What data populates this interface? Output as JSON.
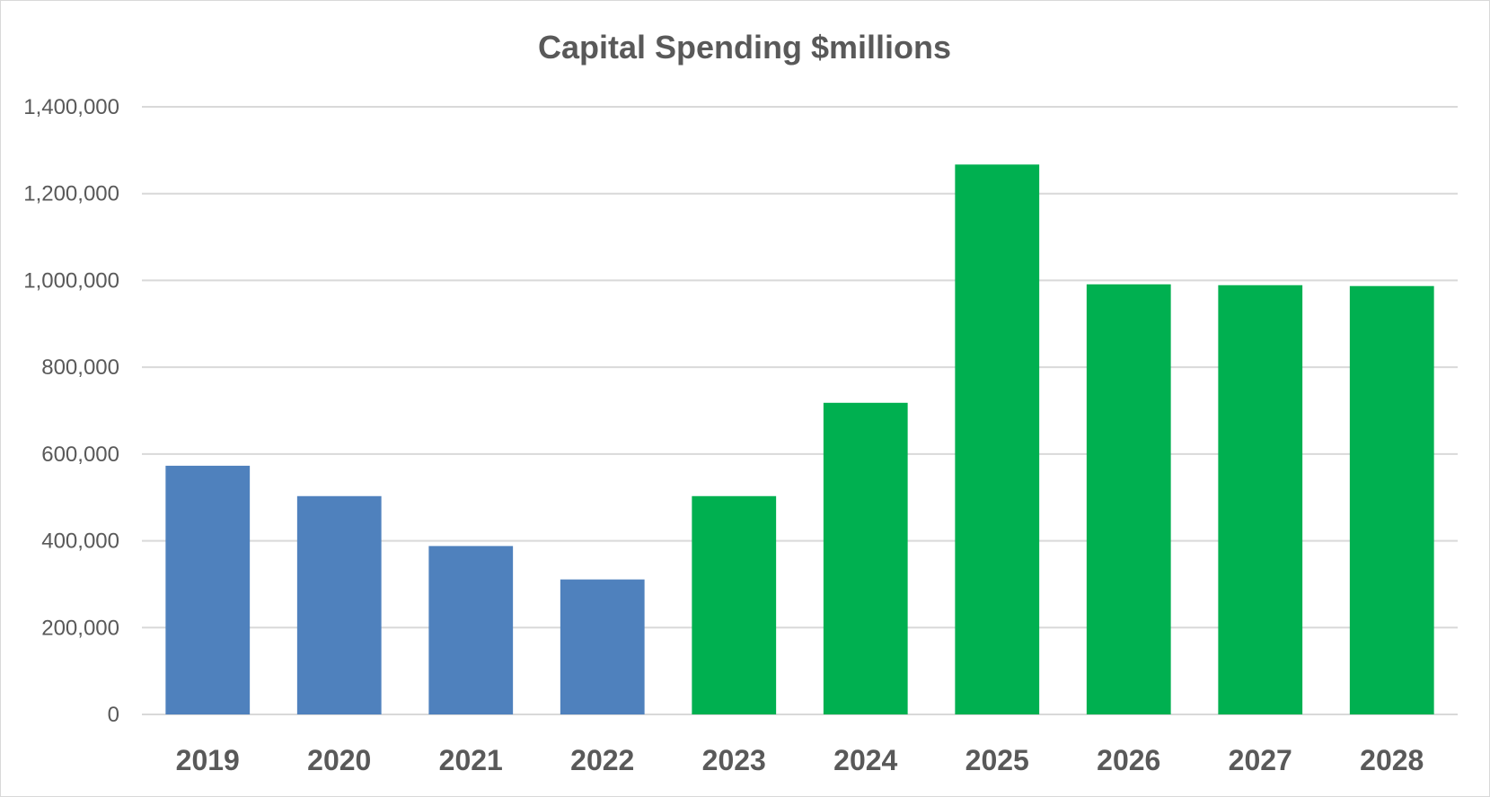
{
  "chart_data": {
    "type": "bar",
    "title": "Capital Spending $millions",
    "xlabel": "",
    "ylabel": "",
    "categories": [
      "2019",
      "2020",
      "2021",
      "2022",
      "2023",
      "2024",
      "2025",
      "2026",
      "2027",
      "2028"
    ],
    "values": [
      573000,
      503000,
      388000,
      311000,
      503000,
      718000,
      1267000,
      991000,
      989000,
      987000
    ],
    "bar_colors": [
      "#4f81bd",
      "#4f81bd",
      "#4f81bd",
      "#4f81bd",
      "#00b050",
      "#00b050",
      "#00b050",
      "#00b050",
      "#00b050",
      "#00b050"
    ],
    "ylim": [
      0,
      1400000
    ],
    "yticks": [
      "0",
      "200,000",
      "400,000",
      "600,000",
      "800,000",
      "1,000,000",
      "1,200,000",
      "1,400,000"
    ],
    "ytick_values": [
      0,
      200000,
      400000,
      600000,
      800000,
      1000000,
      1200000,
      1400000
    ],
    "grid": true,
    "legend": "none"
  }
}
